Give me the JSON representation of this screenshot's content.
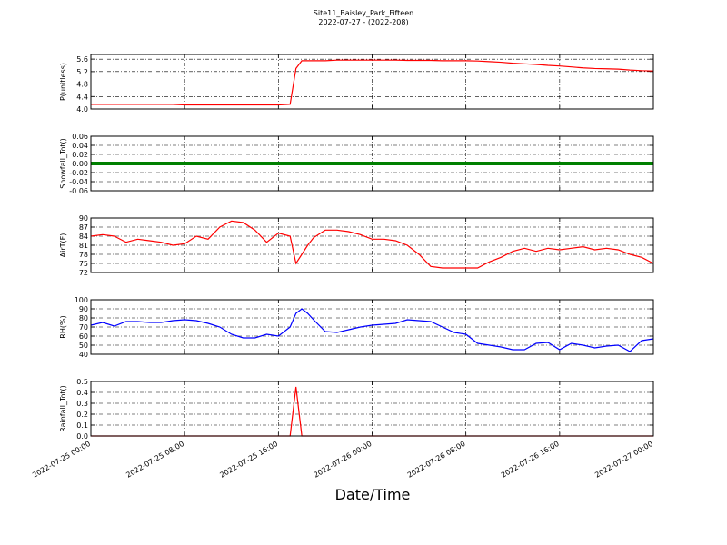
{
  "title": "Site11_Baisley_Park_Fifteen",
  "subtitle": "2022-07-27 - (2022-208)",
  "xlabel": "Date/Time",
  "x": [
    "2022-07-25 00:00",
    "2022-07-25 01:00",
    "2022-07-25 02:00",
    "2022-07-25 03:00",
    "2022-07-25 04:00",
    "2022-07-25 05:00",
    "2022-07-25 06:00",
    "2022-07-25 07:00",
    "2022-07-25 08:00",
    "2022-07-25 09:00",
    "2022-07-25 10:00",
    "2022-07-25 11:00",
    "2022-07-25 12:00",
    "2022-07-25 13:00",
    "2022-07-25 14:00",
    "2022-07-25 15:00",
    "2022-07-25 16:00",
    "2022-07-25 17:00",
    "2022-07-25 17:30",
    "2022-07-25 18:00",
    "2022-07-25 18:30",
    "2022-07-25 19:00",
    "2022-07-25 20:00",
    "2022-07-25 21:00",
    "2022-07-25 22:00",
    "2022-07-25 23:00",
    "2022-07-26 00:00",
    "2022-07-26 01:00",
    "2022-07-26 02:00",
    "2022-07-26 03:00",
    "2022-07-26 04:00",
    "2022-07-26 05:00",
    "2022-07-26 06:00",
    "2022-07-26 07:00",
    "2022-07-26 08:00",
    "2022-07-26 09:00",
    "2022-07-26 10:00",
    "2022-07-26 11:00",
    "2022-07-26 12:00",
    "2022-07-26 13:00",
    "2022-07-26 14:00",
    "2022-07-26 15:00",
    "2022-07-26 16:00",
    "2022-07-26 17:00",
    "2022-07-26 18:00",
    "2022-07-26 19:00",
    "2022-07-26 20:00",
    "2022-07-26 21:00",
    "2022-07-26 22:00",
    "2022-07-26 23:00",
    "2022-07-27 00:00"
  ],
  "xlim": [
    "2022-07-25 00:00",
    "2022-07-27 00:00"
  ],
  "xticks": [
    "2022-07-25 00:00",
    "2022-07-25 08:00",
    "2022-07-25 16:00",
    "2022-07-26 00:00",
    "2022-07-26 08:00",
    "2022-07-26 16:00",
    "2022-07-27 00:00"
  ],
  "chart_data": [
    {
      "type": "line",
      "ylabel": "P(unitless)",
      "ylim": [
        4.0,
        5.75
      ],
      "yticks": [
        {
          "value": 4,
          "label": "4.0"
        },
        4.4,
        4.8,
        5.2,
        5.6
      ],
      "series": [
        {
          "color": "#ff0000",
          "values": [
            4.15,
            4.15,
            4.15,
            4.15,
            4.15,
            4.15,
            4.15,
            4.15,
            4.13,
            4.13,
            4.13,
            4.13,
            4.13,
            4.13,
            4.13,
            4.13,
            4.13,
            4.15,
            5.3,
            5.55,
            5.55,
            5.55,
            5.55,
            5.57,
            5.57,
            5.57,
            5.57,
            5.57,
            5.57,
            5.56,
            5.56,
            5.56,
            5.55,
            5.55,
            5.55,
            5.54,
            5.52,
            5.5,
            5.47,
            5.45,
            5.43,
            5.4,
            5.38,
            5.35,
            5.32,
            5.3,
            5.29,
            5.28,
            5.25,
            5.23,
            5.22
          ]
        }
      ]
    },
    {
      "type": "line",
      "ylabel": "Snowfall_Tot()",
      "ylim": [
        -0.06,
        0.06
      ],
      "yticks": [
        -0.06,
        -0.04,
        -0.02,
        {
          "value": 0,
          "label": "0.00"
        },
        0.02,
        0.04,
        0.06
      ],
      "series": [
        {
          "color": "#008000",
          "values": [
            0,
            0,
            0,
            0,
            0,
            0,
            0,
            0,
            0,
            0,
            0,
            0,
            0,
            0,
            0,
            0,
            0,
            0,
            0,
            0,
            0,
            0,
            0,
            0,
            0,
            0,
            0,
            0,
            0,
            0,
            0,
            0,
            0,
            0,
            0,
            0,
            0,
            0,
            0,
            0,
            0,
            0,
            0,
            0,
            0,
            0,
            0,
            0,
            0,
            0,
            0
          ]
        }
      ]
    },
    {
      "type": "line",
      "ylabel": "AirT(F)",
      "ylim": [
        72,
        90
      ],
      "yticks": [
        72,
        75,
        78,
        81,
        84,
        87,
        90
      ],
      "series": [
        {
          "color": "#ff0000",
          "values": [
            84,
            84.5,
            84,
            82,
            83,
            82.5,
            82,
            81,
            81.5,
            84,
            83,
            87,
            89,
            88.5,
            86,
            82,
            85,
            84,
            75,
            78,
            81,
            83.5,
            86,
            86,
            85.5,
            84.5,
            83,
            83,
            82.5,
            81,
            78,
            74,
            73.5,
            73.5,
            73.5,
            73.5,
            75.5,
            77,
            79,
            80,
            79,
            80,
            79.5,
            80,
            80.5,
            79.5,
            80,
            79.5,
            78,
            77,
            75
          ]
        }
      ]
    },
    {
      "type": "line",
      "ylabel": "RH(%)",
      "ylim": [
        40,
        100
      ],
      "yticks": [
        40,
        50,
        60,
        70,
        80,
        90,
        100
      ],
      "series": [
        {
          "color": "#0000ff",
          "values": [
            72,
            75,
            71,
            76,
            76,
            75,
            75,
            77,
            78,
            77,
            74,
            70,
            62,
            58,
            58,
            62,
            60,
            70,
            85,
            90,
            85,
            78,
            65,
            64,
            67,
            70,
            72,
            73,
            74,
            78,
            77,
            76,
            70,
            64,
            62,
            52,
            50,
            48,
            45,
            45,
            52,
            53,
            45,
            52,
            50,
            47,
            49,
            50,
            43,
            55,
            57
          ]
        }
      ]
    },
    {
      "type": "line",
      "ylabel": "Rainfall_Tot()",
      "ylim": [
        0,
        0.5
      ],
      "yticks": [
        {
          "value": 0,
          "label": "0.0"
        },
        0.1,
        0.2,
        0.3,
        0.4,
        0.5
      ],
      "series": [
        {
          "color": "#ff0000",
          "values": [
            0,
            0,
            0,
            0,
            0,
            0,
            0,
            0,
            0,
            0,
            0,
            0,
            0,
            0,
            0,
            0,
            0,
            0,
            0.45,
            0,
            0,
            0,
            0,
            0,
            0,
            0,
            0,
            0,
            0,
            0,
            0,
            0,
            0,
            0,
            0,
            0,
            0,
            0,
            0,
            0,
            0,
            0,
            0,
            0,
            0,
            0,
            0,
            0,
            0,
            0,
            0
          ]
        }
      ]
    }
  ]
}
